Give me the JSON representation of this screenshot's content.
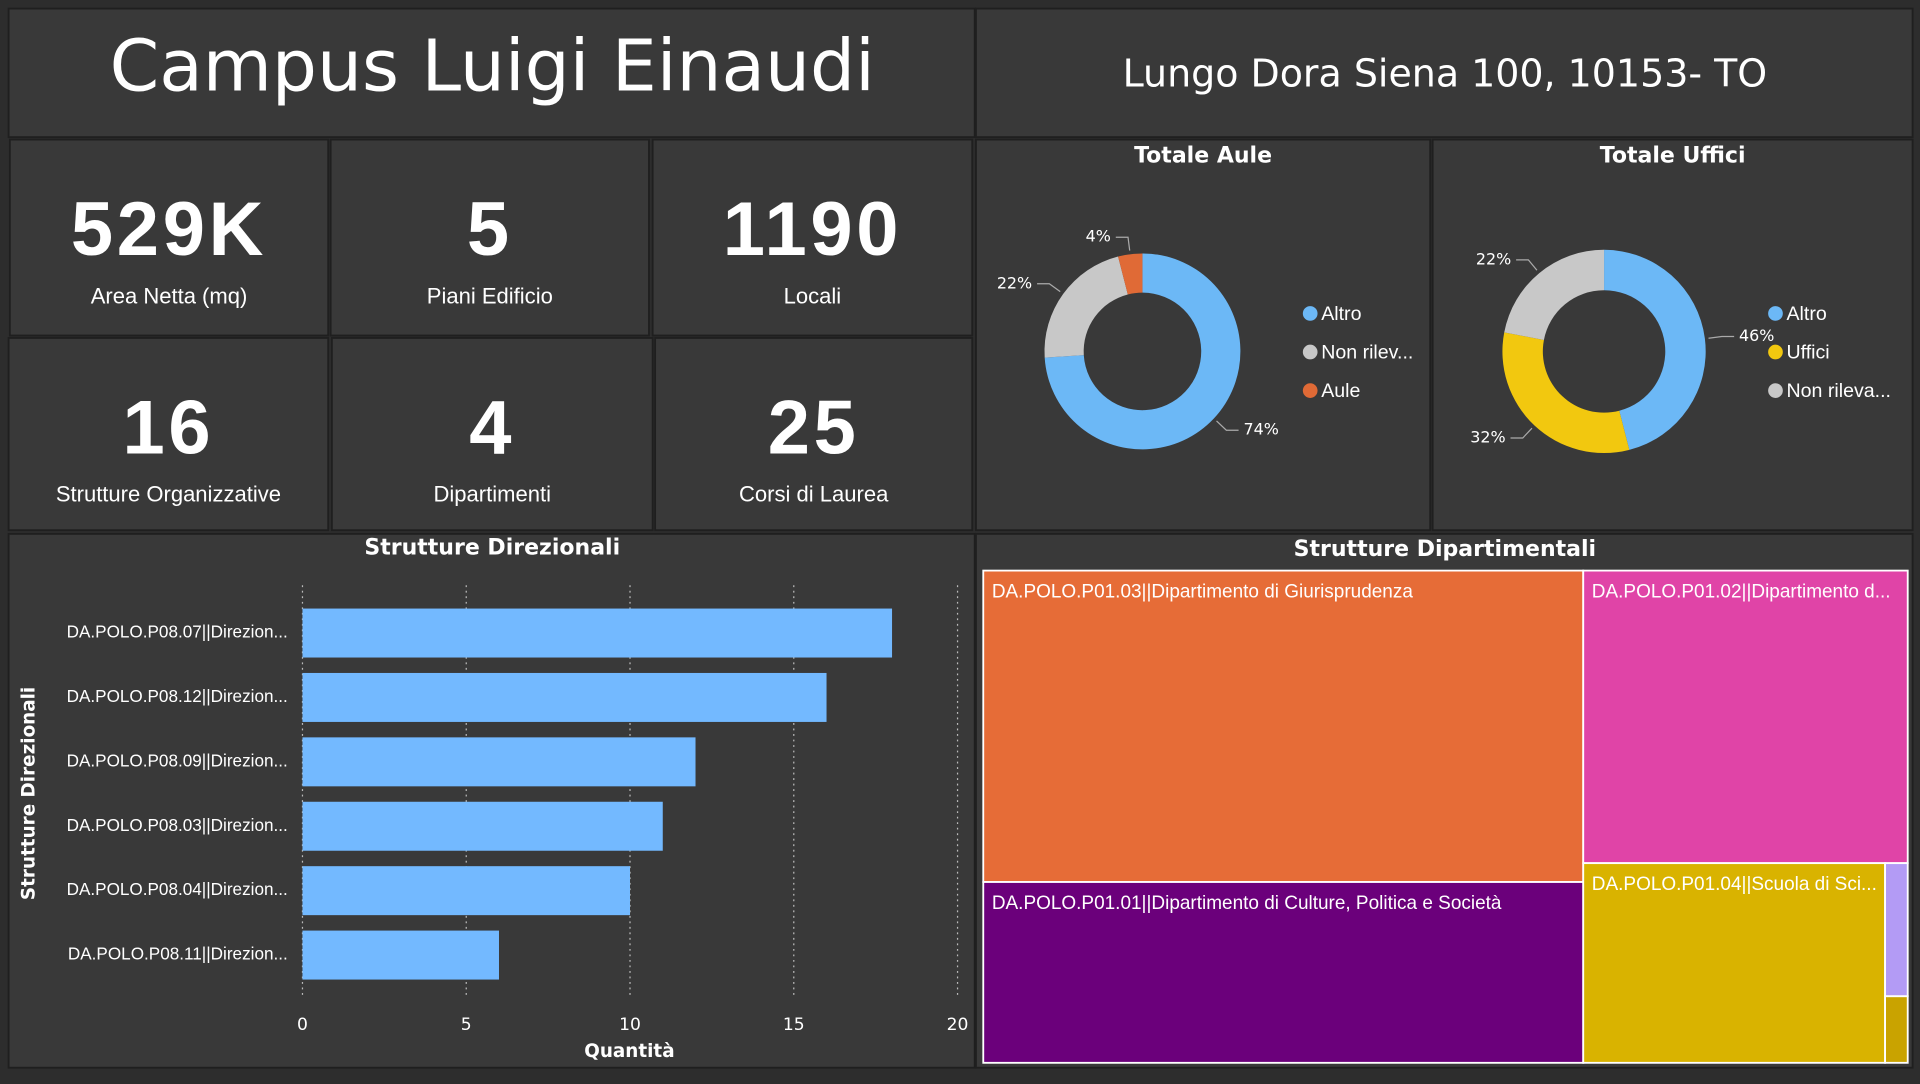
{
  "header": {
    "title": "Campus Luigi Einaudi",
    "address": "Lungo Dora Siena 100, 10153- TO"
  },
  "kpis": [
    {
      "value": "529K",
      "label": "Area Netta (mq)"
    },
    {
      "value": 5,
      "label": "Piani Edificio"
    },
    {
      "value": 1190,
      "label": "Locali"
    },
    {
      "value": 16,
      "label": "Strutture Organizzative"
    },
    {
      "value": 4,
      "label": "Dipartimenti"
    },
    {
      "value": 25,
      "label": "Corsi di Laurea"
    }
  ],
  "chart_data": [
    {
      "type": "donut",
      "title": "Totale Aule",
      "categories": [
        "Altro",
        "Non rilev...",
        "Aule"
      ],
      "values": [
        74,
        22,
        4
      ],
      "value_labels": [
        "74%",
        "22%",
        "4%"
      ],
      "colors": [
        "#6cb8f6",
        "#c8c8c8",
        "#e06a36"
      ]
    },
    {
      "type": "donut",
      "title": "Totale Uffici",
      "categories": [
        "Altro",
        "Uffici",
        "Non rileva..."
      ],
      "values": [
        46,
        32,
        22
      ],
      "value_labels": [
        "46%",
        "32%",
        "22%"
      ],
      "colors": [
        "#6cb8f6",
        "#f2c80f",
        "#c8c8c8"
      ]
    },
    {
      "type": "bar",
      "orientation": "horizontal",
      "title": "Strutture Direzionali",
      "categories": [
        "DA.POLO.P08.07||Direzion...",
        "DA.POLO.P08.12||Direzion...",
        "DA.POLO.P08.09||Direzion...",
        "DA.POLO.P08.03||Direzion...",
        "DA.POLO.P08.04||Direzion...",
        "DA.POLO.P08.11||Direzion..."
      ],
      "values": [
        18,
        16,
        12,
        11,
        10,
        6
      ],
      "color": "#73b9ff",
      "xlim": [
        0,
        20
      ],
      "xticks": [
        0,
        5,
        10,
        15,
        20
      ],
      "grid": true,
      "xlabel": "Quantità",
      "ylabel": "Strutture Direzionali"
    },
    {
      "type": "treemap",
      "title": "Strutture Dipartimentali",
      "categories": [
        "DA.POLO.P01.03||Dipartimento di Giurisprudenza",
        "DA.POLO.P01.01||Dipartimento di Culture, Politica e Società",
        "DA.POLO.P01.02||Dipartimento d...",
        "DA.POLO.P01.04||Scuola di Sci...",
        null,
        null
      ],
      "values": [
        124,
        72,
        63,
        40,
        2,
        1
      ],
      "colors": [
        "#e66c37",
        "#6b007b",
        "#e044a7",
        "#d9b300",
        "#b39bf5",
        "#c9a300"
      ]
    }
  ]
}
